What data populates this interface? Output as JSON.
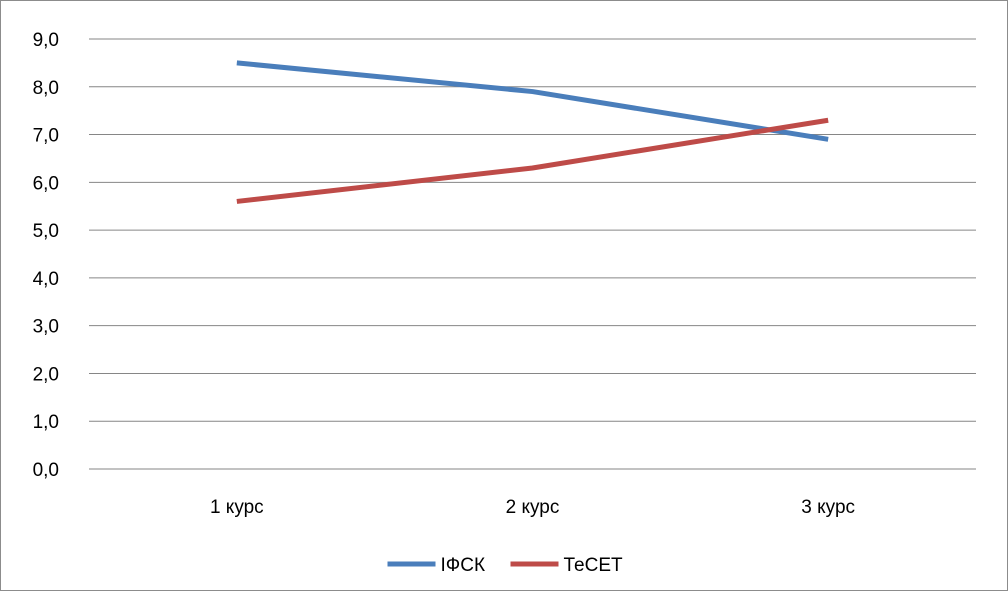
{
  "chart_data": {
    "type": "line",
    "categories": [
      "1 курс",
      "2 курс",
      "3 курс"
    ],
    "series": [
      {
        "name": "ІФСК",
        "values": [
          8.5,
          7.9,
          6.9
        ],
        "color": "#4a7ebb"
      },
      {
        "name": "ТеСЕТ",
        "values": [
          5.6,
          6.3,
          7.3
        ],
        "color": "#be4b48"
      }
    ],
    "title": "",
    "xlabel": "",
    "ylabel": "",
    "ylim": [
      0,
      9
    ],
    "yticks": [
      "0,0",
      "1,0",
      "2,0",
      "3,0",
      "4,0",
      "5,0",
      "6,0",
      "7,0",
      "8,0",
      "9,0"
    ],
    "grid": true,
    "legend": "bottom-center",
    "gridline_color": "#868686"
  }
}
